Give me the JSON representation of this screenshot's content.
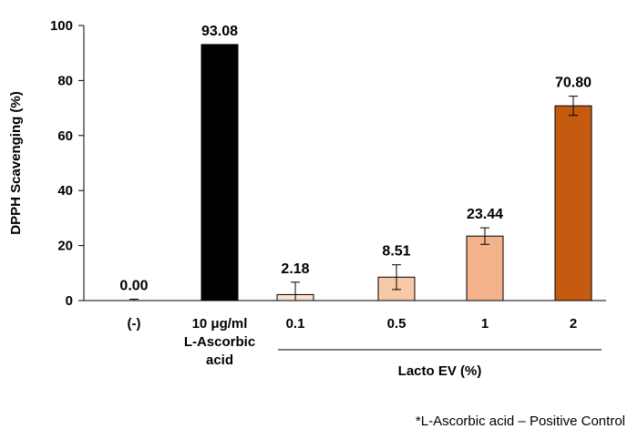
{
  "chart_data": {
    "type": "bar",
    "ylabel": "DPPH Scavenging (%)",
    "ylim": [
      0,
      100
    ],
    "yticks": [
      "0",
      "20",
      "40",
      "60",
      "80",
      "100"
    ],
    "grid": false,
    "categories": [
      {
        "lines": [
          "(-)"
        ]
      },
      {
        "lines": [
          "10 μg/ml",
          "L-Ascorbic",
          "acid"
        ]
      },
      {
        "lines": [
          "0.1"
        ]
      },
      {
        "lines": [
          "0.5"
        ]
      },
      {
        "lines": [
          "1"
        ]
      },
      {
        "lines": [
          "2"
        ]
      }
    ],
    "values": [
      0.0,
      93.08,
      2.18,
      8.51,
      23.44,
      70.8
    ],
    "value_labels": [
      "0.00",
      "93.08",
      "2.18",
      "8.51",
      "23.44",
      "70.80"
    ],
    "errors": [
      0.5,
      0,
      4.5,
      4.5,
      3.0,
      3.5
    ],
    "colors": [
      "#ffffff",
      "#000000",
      "#fbe1cf",
      "#f7c9a6",
      "#f2b28a",
      "#c55a11"
    ],
    "group_label": "Lacto EV (%)",
    "footnote": "*L-Ascorbic acid – Positive Control"
  }
}
